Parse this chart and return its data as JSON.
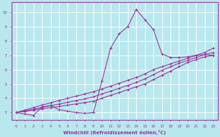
{
  "background_color": "#b8e8ee",
  "grid_color": "#ffffff",
  "line_color": "#993399",
  "xlabel": "Windchill (Refroidissement éolien,°C)",
  "xlim": [
    -0.5,
    23.5
  ],
  "ylim": [
    2.5,
    10.7
  ],
  "yticks": [
    3,
    4,
    5,
    6,
    7,
    8,
    9,
    10
  ],
  "xticks": [
    0,
    1,
    2,
    3,
    4,
    5,
    6,
    7,
    8,
    9,
    10,
    11,
    12,
    13,
    14,
    15,
    16,
    17,
    18,
    19,
    20,
    21,
    22,
    23
  ],
  "series_main": {
    "x": [
      0,
      1,
      2,
      3,
      4,
      5,
      6,
      7,
      8,
      9,
      10,
      11,
      12,
      13,
      14,
      15,
      16,
      17,
      18,
      19,
      20,
      21,
      22,
      23
    ],
    "y": [
      3.0,
      2.9,
      2.8,
      3.4,
      3.5,
      3.2,
      3.1,
      3.0,
      2.95,
      3.0,
      5.2,
      7.5,
      8.5,
      9.0,
      10.2,
      9.5,
      8.8,
      7.1,
      6.85,
      6.85,
      6.9,
      7.0,
      7.05,
      7.0
    ]
  },
  "series_linear": [
    {
      "x": [
        0,
        1,
        2,
        3,
        4,
        5,
        6,
        7,
        8,
        9,
        10,
        11,
        12,
        13,
        14,
        15,
        16,
        17,
        18,
        19,
        20,
        21,
        22,
        23
      ],
      "y": [
        3.0,
        3.08,
        3.17,
        3.26,
        3.35,
        3.43,
        3.52,
        3.61,
        3.7,
        3.79,
        4.0,
        4.2,
        4.4,
        4.6,
        4.8,
        5.0,
        5.3,
        5.6,
        5.9,
        6.2,
        6.5,
        6.7,
        6.9,
        7.0
      ]
    },
    {
      "x": [
        0,
        1,
        2,
        3,
        4,
        5,
        6,
        7,
        8,
        9,
        10,
        11,
        12,
        13,
        14,
        15,
        16,
        17,
        18,
        19,
        20,
        21,
        22,
        23
      ],
      "y": [
        3.0,
        3.12,
        3.24,
        3.36,
        3.48,
        3.6,
        3.72,
        3.84,
        3.96,
        4.1,
        4.3,
        4.5,
        4.7,
        4.9,
        5.1,
        5.35,
        5.65,
        5.95,
        6.2,
        6.45,
        6.65,
        6.85,
        7.05,
        7.2
      ]
    },
    {
      "x": [
        0,
        1,
        2,
        3,
        4,
        5,
        6,
        7,
        8,
        9,
        10,
        11,
        12,
        13,
        14,
        15,
        16,
        17,
        18,
        19,
        20,
        21,
        22,
        23
      ],
      "y": [
        3.0,
        3.18,
        3.35,
        3.52,
        3.68,
        3.85,
        4.0,
        4.15,
        4.3,
        4.45,
        4.65,
        4.85,
        5.05,
        5.25,
        5.45,
        5.7,
        6.0,
        6.2,
        6.4,
        6.6,
        6.8,
        7.0,
        7.2,
        7.5
      ]
    }
  ]
}
